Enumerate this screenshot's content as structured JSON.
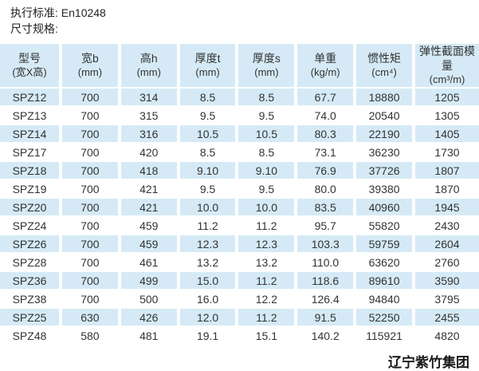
{
  "page": {
    "standard_note": "执行标准: En10248",
    "spec_note": "尺寸规格:",
    "footer_company": "辽宁紫竹集团"
  },
  "colors": {
    "row_highlight": "#d5eaf6",
    "background": "#ffffff",
    "text": "#333333"
  },
  "table": {
    "columns": [
      {
        "line1": "型号",
        "line2": "(宽X高)"
      },
      {
        "line1": "宽b",
        "line2": "(mm)"
      },
      {
        "line1": "高h",
        "line2": "(mm)"
      },
      {
        "line1": "厚度t",
        "line2": "(mm)"
      },
      {
        "line1": "厚度s",
        "line2": "(mm)"
      },
      {
        "line1": "单重",
        "line2": "(kg/m)"
      },
      {
        "line1": "惯性矩",
        "line2": "(cm⁴)"
      },
      {
        "line1": "弹性截面模量",
        "line2": "(cm³/m)"
      }
    ],
    "rows": [
      [
        "SPZ12",
        "700",
        "314",
        "8.5",
        "8.5",
        "67.7",
        "18880",
        "1205"
      ],
      [
        "SPZ13",
        "700",
        "315",
        "9.5",
        "9.5",
        "74.0",
        "20540",
        "1305"
      ],
      [
        "SPZ14",
        "700",
        "316",
        "10.5",
        "10.5",
        "80.3",
        "22190",
        "1405"
      ],
      [
        "SPZ17",
        "700",
        "420",
        "8.5",
        "8.5",
        "73.1",
        "36230",
        "1730"
      ],
      [
        "SPZ18",
        "700",
        "418",
        "9.10",
        "9.10",
        "76.9",
        "37726",
        "1807"
      ],
      [
        "SPZ19",
        "700",
        "421",
        "9.5",
        "9.5",
        "80.0",
        "39380",
        "1870"
      ],
      [
        "SPZ20",
        "700",
        "421",
        "10.0",
        "10.0",
        "83.5",
        "40960",
        "1945"
      ],
      [
        "SPZ24",
        "700",
        "459",
        "11.2",
        "11.2",
        "95.7",
        "55820",
        "2430"
      ],
      [
        "SPZ26",
        "700",
        "459",
        "12.3",
        "12.3",
        "103.3",
        "59759",
        "2604"
      ],
      [
        "SPZ28",
        "700",
        "461",
        "13.2",
        "13.2",
        "110.0",
        "63620",
        "2760"
      ],
      [
        "SPZ36",
        "700",
        "499",
        "15.0",
        "11.2",
        "118.6",
        "89610",
        "3590"
      ],
      [
        "SPZ38",
        "700",
        "500",
        "16.0",
        "12.2",
        "126.4",
        "94840",
        "3795"
      ],
      [
        "SPZ25",
        "630",
        "426",
        "12.0",
        "11.2",
        "91.5",
        "52250",
        "2455"
      ],
      [
        "SPZ48",
        "580",
        "481",
        "19.1",
        "15.1",
        "140.2",
        "115921",
        "4820"
      ]
    ]
  }
}
